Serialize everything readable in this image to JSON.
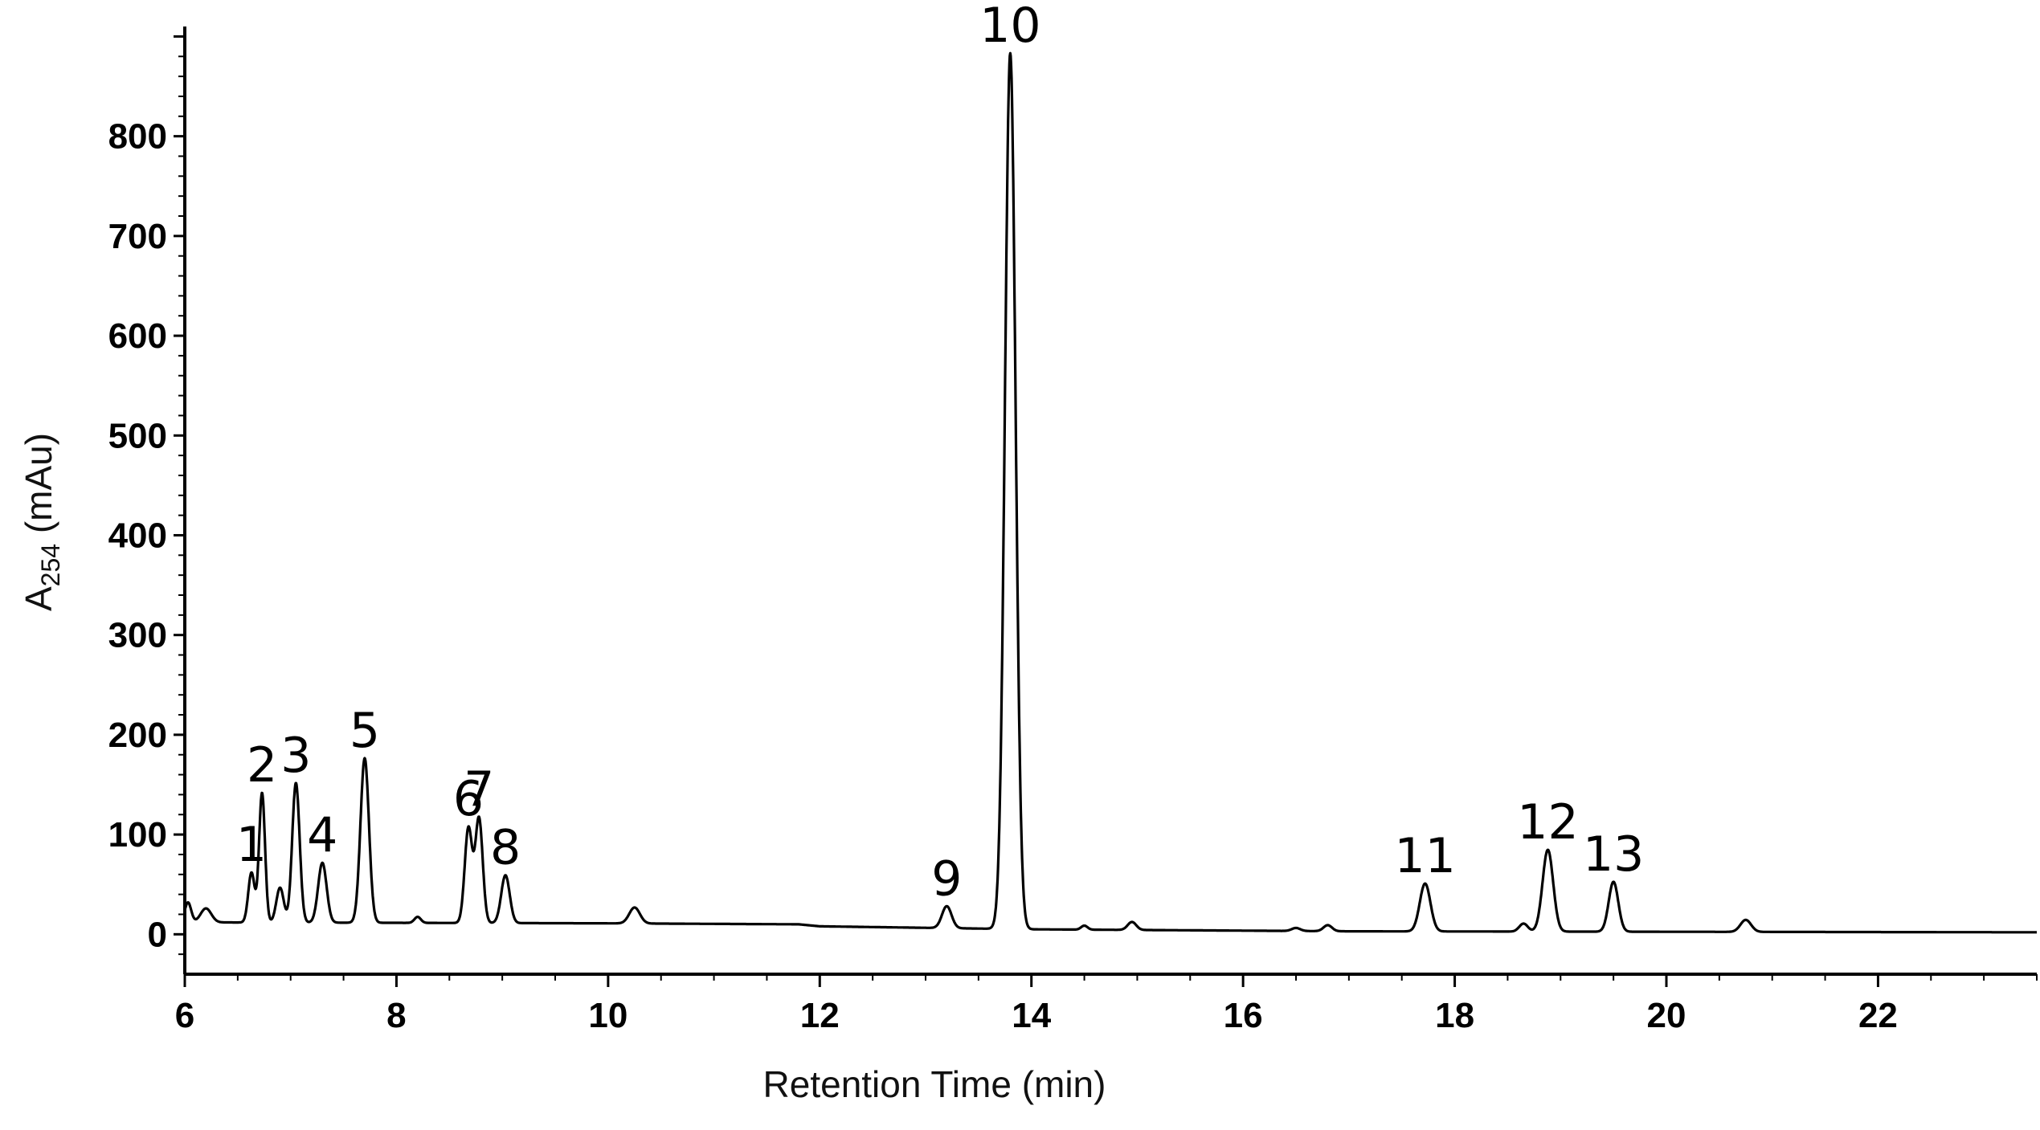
{
  "chart_data": {
    "type": "line",
    "title": "",
    "xlabel": "Retention Time (min)",
    "ylabel": {
      "main": "A",
      "subscript": "254",
      "unit": " (mAu)"
    },
    "xlim": [
      6,
      23.5
    ],
    "ylim": [
      -40,
      910
    ],
    "x_ticks": [
      6,
      8,
      10,
      12,
      14,
      16,
      18,
      20,
      22
    ],
    "y_ticks": [
      0,
      100,
      200,
      300,
      400,
      500,
      600,
      700,
      800
    ],
    "grid": false,
    "legend": "none",
    "line_color": "#000000",
    "baseline": [
      [
        6.0,
        12
      ],
      [
        10.0,
        11
      ],
      [
        11.8,
        10
      ],
      [
        12.0,
        8
      ],
      [
        14.0,
        5
      ],
      [
        17.0,
        3
      ],
      [
        23.5,
        2
      ]
    ],
    "minor_peaks": [
      {
        "rt": 6.03,
        "height": 20,
        "width": 0.03
      },
      {
        "rt": 6.2,
        "height": 14,
        "width": 0.05
      },
      {
        "rt": 6.9,
        "height": 35,
        "width": 0.035
      },
      {
        "rt": 8.2,
        "height": 6,
        "width": 0.03
      },
      {
        "rt": 10.25,
        "height": 16,
        "width": 0.05
      },
      {
        "rt": 14.5,
        "height": 4,
        "width": 0.03
      },
      {
        "rt": 14.95,
        "height": 8,
        "width": 0.04
      },
      {
        "rt": 16.5,
        "height": 3,
        "width": 0.04
      },
      {
        "rt": 16.8,
        "height": 6,
        "width": 0.04
      },
      {
        "rt": 18.65,
        "height": 8,
        "width": 0.04
      },
      {
        "rt": 20.75,
        "height": 12,
        "width": 0.05
      }
    ],
    "peaks": [
      {
        "label": "1",
        "rt": 6.63,
        "height": 50,
        "width": 0.03
      },
      {
        "label": "2",
        "rt": 6.73,
        "height": 130,
        "width": 0.028
      },
      {
        "label": "3",
        "rt": 7.05,
        "height": 140,
        "width": 0.035
      },
      {
        "label": "4",
        "rt": 7.3,
        "height": 60,
        "width": 0.04
      },
      {
        "label": "5",
        "rt": 7.7,
        "height": 165,
        "width": 0.04
      },
      {
        "label": "6",
        "rt": 8.68,
        "height": 95,
        "width": 0.035
      },
      {
        "label": "7",
        "rt": 8.78,
        "height": 105,
        "width": 0.035
      },
      {
        "label": "8",
        "rt": 9.03,
        "height": 48,
        "width": 0.04
      },
      {
        "label": "9",
        "rt": 13.2,
        "height": 22,
        "width": 0.045
      },
      {
        "label": "10",
        "rt": 13.8,
        "height": 878,
        "width": 0.05
      },
      {
        "label": "11",
        "rt": 17.72,
        "height": 48,
        "width": 0.05
      },
      {
        "label": "12",
        "rt": 18.88,
        "height": 82,
        "width": 0.05
      },
      {
        "label": "13",
        "rt": 19.5,
        "height": 50,
        "width": 0.045
      }
    ]
  }
}
